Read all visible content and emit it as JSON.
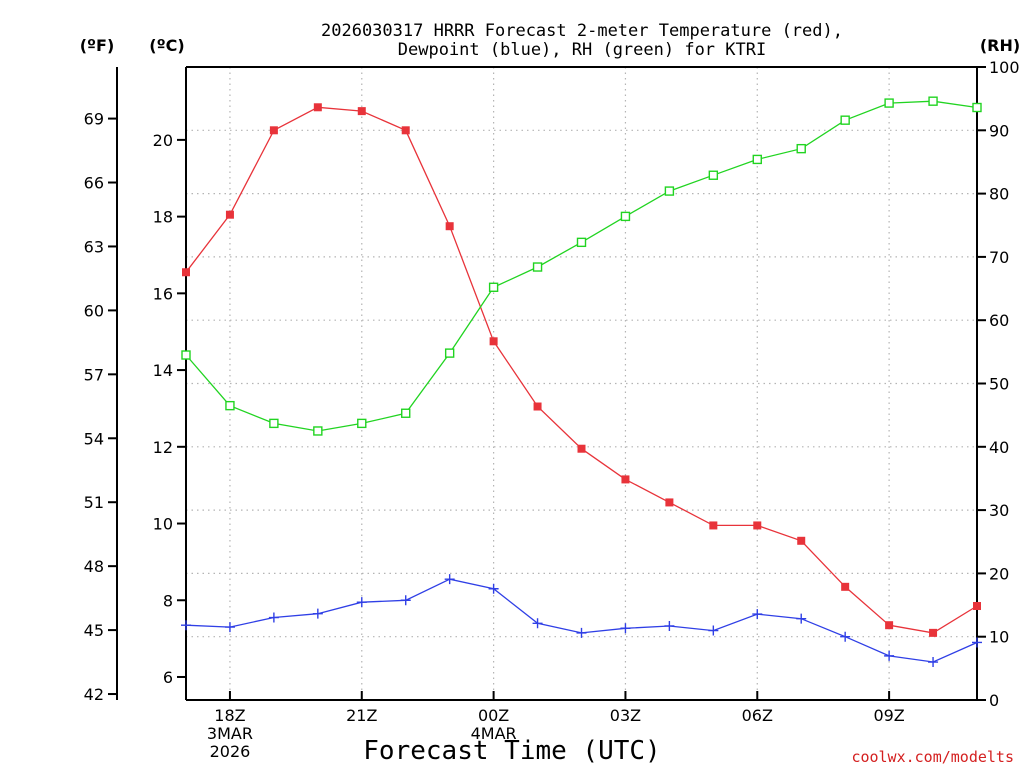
{
  "chart_data": {
    "type": "line",
    "title_line1": "2026030317 HRRR Forecast 2-meter Temperature (red),",
    "title_line2": "Dewpoint (blue), RH (green) for KTRI",
    "xlabel": "Forecast Time (UTC)",
    "credit": "coolwx.com/modelts",
    "unit_f": "(ºF)",
    "unit_c": "(ºC)",
    "unit_rh": "(RH)",
    "x_hours": [
      17,
      18,
      19,
      20,
      21,
      22,
      23,
      24,
      25,
      26,
      27,
      28,
      29,
      30,
      31,
      32,
      33,
      34,
      35
    ],
    "x_ticks": [
      {
        "hour": 18,
        "lines": [
          "18Z",
          "3MAR",
          "2026"
        ]
      },
      {
        "hour": 21,
        "lines": [
          "21Z"
        ]
      },
      {
        "hour": 24,
        "lines": [
          "00Z",
          "4MAR"
        ]
      },
      {
        "hour": 27,
        "lines": [
          "03Z"
        ]
      },
      {
        "hour": 30,
        "lines": [
          "06Z"
        ]
      },
      {
        "hour": 33,
        "lines": [
          "09Z"
        ]
      }
    ],
    "c_axis": {
      "range": [
        5.4,
        21.9
      ],
      "ticks": [
        "6",
        "8",
        "10",
        "12",
        "14",
        "16",
        "18",
        "20"
      ]
    },
    "f_axis": {
      "ticks": [
        "42",
        "45",
        "48",
        "51",
        "54",
        "57",
        "60",
        "63",
        "66",
        "69"
      ]
    },
    "rh_axis": {
      "range": [
        0,
        100
      ],
      "ticks": [
        "0",
        "10",
        "20",
        "30",
        "40",
        "50",
        "60",
        "70",
        "80",
        "90",
        "100"
      ]
    },
    "grid": true,
    "series": [
      {
        "name": "Temperature",
        "axis": "c",
        "color": "#e8333a",
        "marker": "filled-square",
        "values": [
          16.55,
          18.05,
          20.25,
          20.85,
          20.75,
          20.25,
          17.75,
          14.75,
          13.05,
          11.95,
          11.15,
          10.55,
          9.95,
          9.95,
          9.55,
          8.35,
          7.35,
          7.15,
          7.85
        ]
      },
      {
        "name": "Dewpoint",
        "axis": "c",
        "color": "#2f3fe6",
        "marker": "plus",
        "values": [
          7.35,
          7.3,
          7.55,
          7.65,
          7.95,
          8.0,
          8.55,
          8.3,
          7.4,
          7.15,
          7.27,
          7.33,
          7.21,
          7.64,
          7.52,
          7.05,
          6.55,
          6.39,
          6.9
        ]
      },
      {
        "name": "RH",
        "axis": "rh",
        "color": "#21d421",
        "marker": "open-square",
        "values": [
          54.5,
          46.5,
          43.7,
          42.5,
          43.7,
          45.3,
          54.8,
          65.2,
          68.4,
          72.3,
          76.4,
          80.4,
          82.9,
          85.4,
          87.1,
          91.6,
          94.3,
          94.6,
          93.6
        ]
      }
    ]
  }
}
